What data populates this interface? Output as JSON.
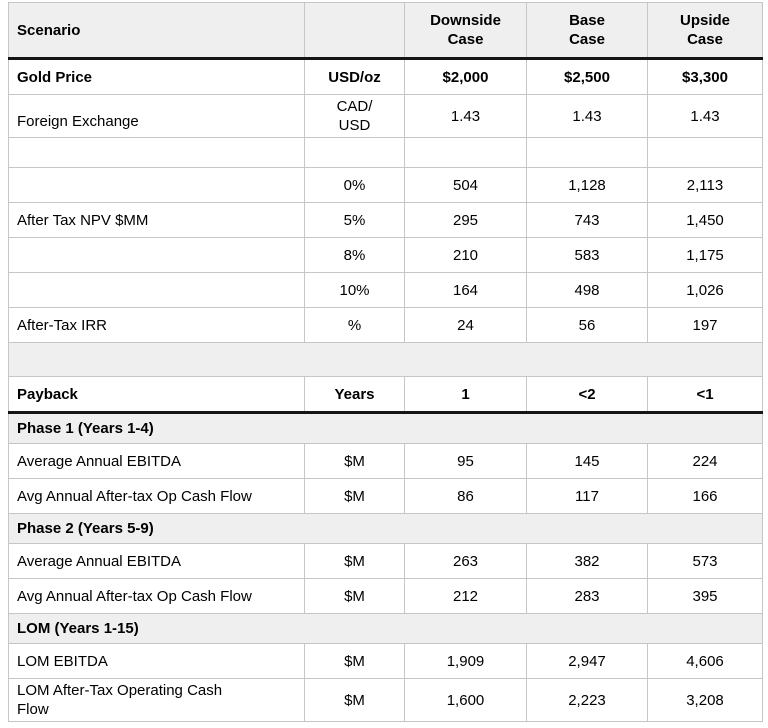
{
  "table": {
    "header": {
      "scenario": "Scenario",
      "unit": "",
      "cases": [
        "Downside\nCase",
        "Base\nCase",
        "Upside\nCase"
      ]
    },
    "rows": [
      {
        "type": "data",
        "bold": true,
        "label": "Gold Price",
        "unit": "USD/oz",
        "values": [
          "$2,000",
          "$2,500",
          "$3,300"
        ]
      },
      {
        "type": "data",
        "bold": false,
        "label": "Foreign Exchange",
        "unit": "CAD/\nUSD",
        "values": [
          "1.43",
          "1.43",
          "1.43"
        ]
      },
      {
        "type": "empty"
      },
      {
        "type": "data",
        "bold": false,
        "label": "",
        "unit": "0%",
        "values": [
          "504",
          "1,128",
          "2,113"
        ]
      },
      {
        "type": "data",
        "bold": false,
        "label": "After Tax NPV $MM",
        "unit": "5%",
        "values": [
          "295",
          "743",
          "1,450"
        ]
      },
      {
        "type": "data",
        "bold": false,
        "label": "",
        "unit": "8%",
        "values": [
          "210",
          "583",
          "1,175"
        ]
      },
      {
        "type": "data",
        "bold": false,
        "label": "",
        "unit": "10%",
        "values": [
          "164",
          "498",
          "1,026"
        ]
      },
      {
        "type": "data",
        "bold": false,
        "label": "After-Tax IRR",
        "unit": "%",
        "values": [
          "24",
          "56",
          "197"
        ]
      },
      {
        "type": "separator"
      },
      {
        "type": "data",
        "bold": true,
        "thick_bottom": true,
        "label": "Payback",
        "unit": "Years",
        "values": [
          "1",
          "<2",
          "<1"
        ]
      },
      {
        "type": "section",
        "label": "Phase 1 (Years 1-4)"
      },
      {
        "type": "data",
        "bold": false,
        "label": "Average Annual EBITDA",
        "unit": "$M",
        "values": [
          "95",
          "145",
          "224"
        ]
      },
      {
        "type": "data",
        "bold": false,
        "label": "Avg Annual After-tax Op Cash Flow",
        "unit": "$M",
        "values": [
          "86",
          "117",
          "166"
        ]
      },
      {
        "type": "section",
        "label": "Phase 2 (Years 5-9)"
      },
      {
        "type": "data",
        "bold": false,
        "label": "Average Annual EBITDA",
        "unit": "$M",
        "values": [
          "263",
          "382",
          "573"
        ]
      },
      {
        "type": "data",
        "bold": false,
        "label": "Avg Annual After-tax Op Cash Flow",
        "unit": "$M",
        "values": [
          "212",
          "283",
          "395"
        ]
      },
      {
        "type": "section",
        "label": "LOM (Years 1-15)"
      },
      {
        "type": "data",
        "bold": false,
        "label": "LOM EBITDA",
        "unit": "$M",
        "values": [
          "1,909",
          "2,947",
          "4,606"
        ]
      },
      {
        "type": "data",
        "bold": false,
        "label": "LOM After-Tax Operating Cash\nFlow",
        "unit": "$M",
        "values": [
          "1,600",
          "2,223",
          "3,208"
        ]
      }
    ]
  }
}
